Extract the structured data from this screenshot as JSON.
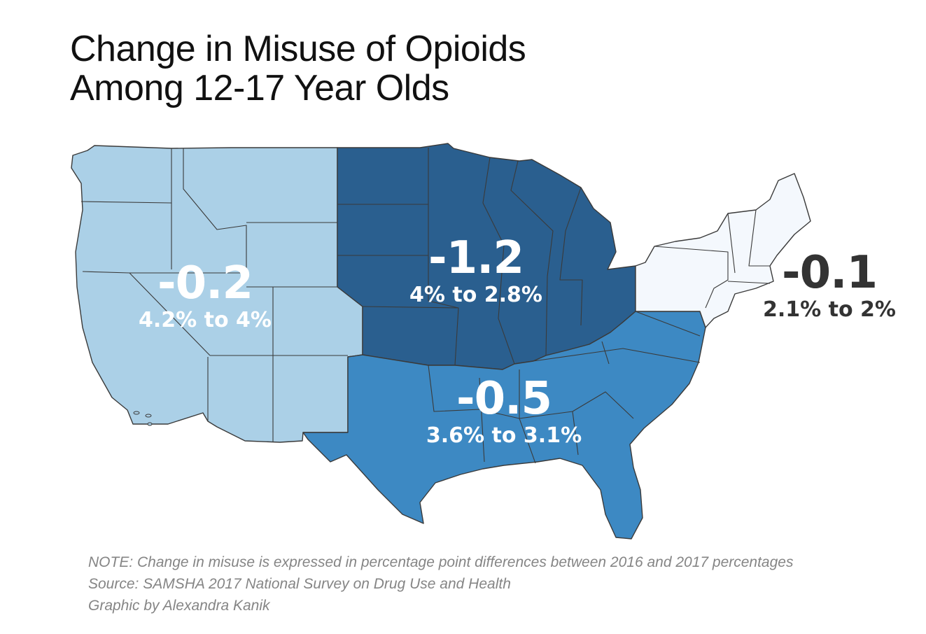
{
  "title": {
    "line1": "Change in Misuse of Opioids",
    "line2": "Among 12-17 Year Olds"
  },
  "colors": {
    "west": "#abd0e7",
    "midwest": "#2a5f8f",
    "south": "#3d89c3",
    "northeast": "#f4f8fd",
    "label_light": "#ffffff",
    "label_dark": "#333333",
    "note_text": "#858585"
  },
  "regions": [
    {
      "id": "west",
      "change": "-0.2",
      "range": "4.2% to 4%"
    },
    {
      "id": "midwest",
      "change": "-1.2",
      "range": "4% to 2.8%"
    },
    {
      "id": "south",
      "change": "-0.5",
      "range": "3.6% to 3.1%"
    },
    {
      "id": "northeast",
      "change": "-0.1",
      "range": "2.1% to 2%"
    }
  ],
  "notes": {
    "note": "NOTE: Change in misuse is expressed in percentage point differences between 2016 and 2017 percentages",
    "source": "Source: SAMSHA 2017 National Survey on Drug Use and Health",
    "credit": "Graphic by Alexandra Kanik"
  }
}
